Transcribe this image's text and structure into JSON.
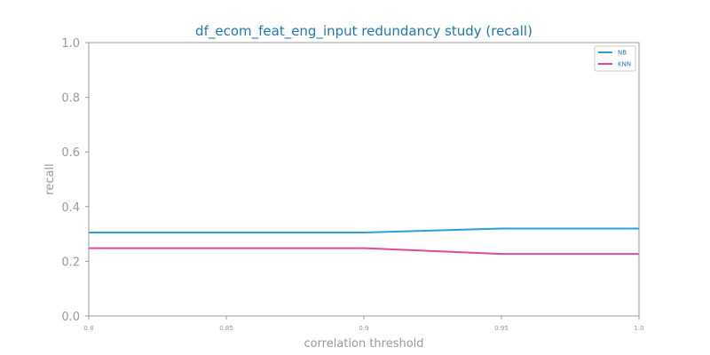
{
  "chart_data": {
    "type": "line",
    "title": "df_ecom_feat_eng_input redundancy study (recall)",
    "xlabel": "correlation threshold",
    "ylabel": "recall",
    "x": [
      0.8,
      0.85,
      0.9,
      0.95,
      1.0
    ],
    "x_tick_labels": [
      "0.8",
      "0.85",
      "0.9",
      "0.95",
      "1.0"
    ],
    "y_tick_labels": [
      "0.0",
      "0.2",
      "0.4",
      "0.6",
      "0.8",
      "1.0"
    ],
    "xlim": [
      0.8,
      1.0
    ],
    "ylim": [
      0.0,
      1.0
    ],
    "grid": false,
    "legend_position": "top-right",
    "series": [
      {
        "name": "NB",
        "color": "#2b9fd8",
        "values": [
          0.305,
          0.305,
          0.305,
          0.32,
          0.32
        ]
      },
      {
        "name": "KNN",
        "color": "#e0489a",
        "values": [
          0.248,
          0.248,
          0.248,
          0.227,
          0.227
        ]
      }
    ]
  }
}
